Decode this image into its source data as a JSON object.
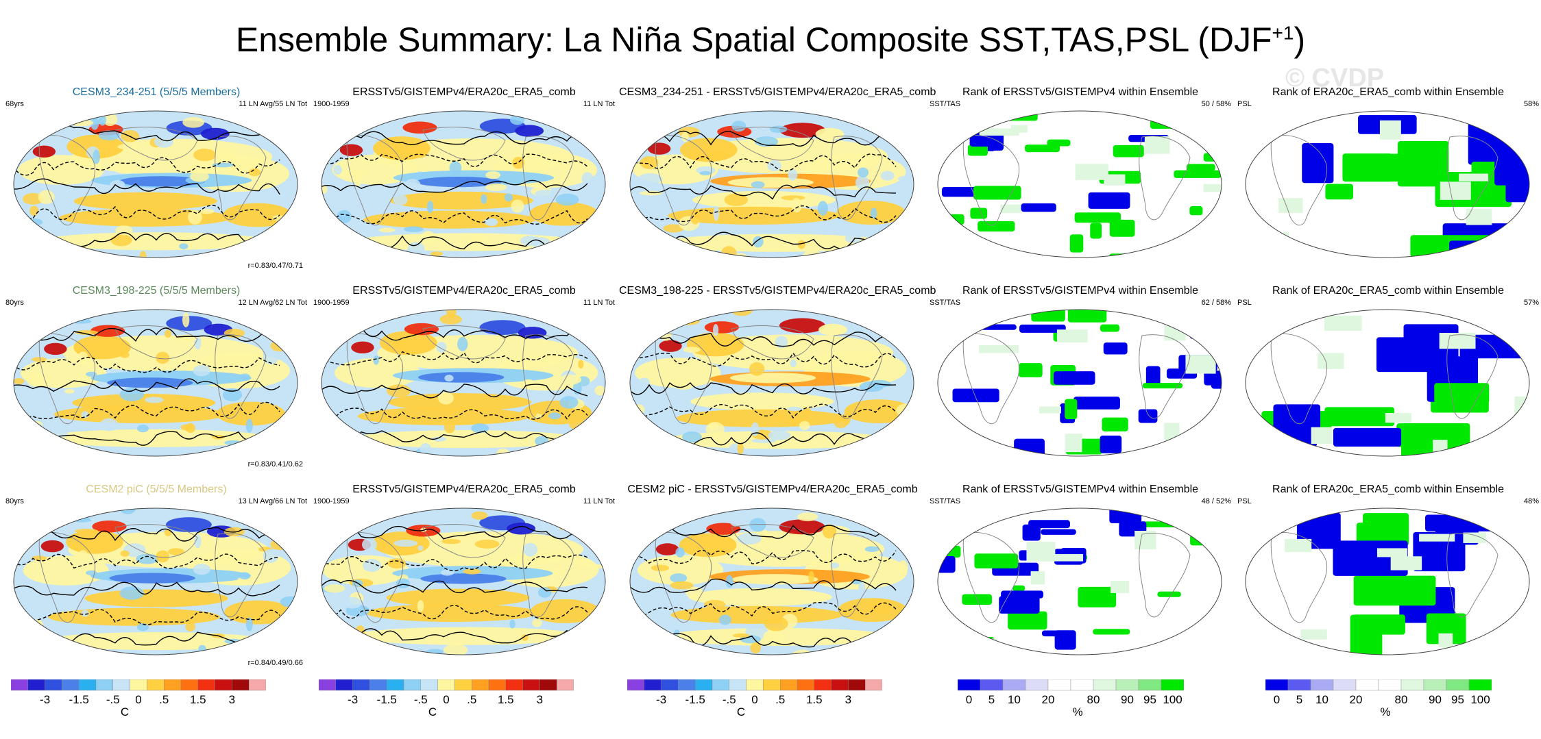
{
  "figure": {
    "title_main": "Ensemble Summary: La Niña Spatial Composite SST,TAS,PSL (DJF",
    "title_sup": "+1",
    "title_end": ")",
    "watermark": "© CVDP"
  },
  "colors": {
    "ensemble_title_rows": [
      "#1a6fa0",
      "#5a8a5a",
      "#d8c880"
    ],
    "anomaly_scale": [
      "#8a3fe0",
      "#2020d0",
      "#3050e0",
      "#4a80e8",
      "#2ab0f0",
      "#8ed0f4",
      "#c6e4f6",
      "#fff6a0",
      "#ffd040",
      "#ffa020",
      "#ff7010",
      "#f03010",
      "#c81010",
      "#a00a0a",
      "#f4a8a8"
    ],
    "rank_scale": [
      "#0000e8",
      "#5a5af0",
      "#aaaaf4",
      "#dcdcf8",
      "#ffffff",
      "#ffffff",
      "#dff7df",
      "#b8f0b8",
      "#80e880",
      "#00e800"
    ],
    "land_outline": "#888888",
    "contour": "#000000"
  },
  "chart_data": [
    {
      "type": "map",
      "row": 1,
      "col": 1,
      "title": "CESM3_234-251 (5/5/5 Members)",
      "left_label": "68yrs",
      "right_label": "11 LN Avg/55 LN Tot",
      "corner_label": "r=0.83/0.47/0.71",
      "variable": "SST/TAS/PSL composite",
      "units": "C"
    },
    {
      "type": "map",
      "row": 1,
      "col": 2,
      "title": "ERSSTv5/GISTEMPv4/ERA20c_ERA5_comb",
      "left_label": "1900-1959",
      "right_label": "11 LN Tot",
      "variable": "SST/TAS/PSL composite",
      "units": "C"
    },
    {
      "type": "map",
      "row": 1,
      "col": 3,
      "title": "CESM3_234-251 - ERSSTv5/GISTEMPv4/ERA20c_ERA5_comb",
      "variable": "difference",
      "units": "C"
    },
    {
      "type": "map",
      "row": 1,
      "col": 4,
      "title": "Rank of ERSSTv5/GISTEMPv4 within Ensemble",
      "left_label": "SST/TAS",
      "right_label": "50 /  58%",
      "units": "%"
    },
    {
      "type": "map",
      "row": 1,
      "col": 5,
      "title": "Rank of ERA20c_ERA5_comb within Ensemble",
      "left_label": "PSL",
      "right_label": "58%",
      "units": "%"
    },
    {
      "type": "map",
      "row": 2,
      "col": 1,
      "title": "CESM3_198-225 (5/5/5 Members)",
      "left_label": "80yrs",
      "right_label": "12 LN Avg/62 LN Tot",
      "corner_label": "r=0.83/0.41/0.62",
      "units": "C"
    },
    {
      "type": "map",
      "row": 2,
      "col": 2,
      "title": "ERSSTv5/GISTEMPv4/ERA20c_ERA5_comb",
      "left_label": "1900-1959",
      "right_label": "11 LN Tot",
      "units": "C"
    },
    {
      "type": "map",
      "row": 2,
      "col": 3,
      "title": "CESM3_198-225 - ERSSTv5/GISTEMPv4/ERA20c_ERA5_comb",
      "units": "C"
    },
    {
      "type": "map",
      "row": 2,
      "col": 4,
      "title": "Rank of ERSSTv5/GISTEMPv4 within Ensemble",
      "left_label": "SST/TAS",
      "right_label": "62 /  58%",
      "units": "%"
    },
    {
      "type": "map",
      "row": 2,
      "col": 5,
      "title": "Rank of ERA20c_ERA5_comb within Ensemble",
      "left_label": "PSL",
      "right_label": "57%",
      "units": "%"
    },
    {
      "type": "map",
      "row": 3,
      "col": 1,
      "title": "CESM2 piC (5/5/5 Members)",
      "left_label": "80yrs",
      "right_label": "13 LN Avg/66 LN Tot",
      "corner_label": "r=0.84/0.49/0.66",
      "units": "C"
    },
    {
      "type": "map",
      "row": 3,
      "col": 2,
      "title": "ERSSTv5/GISTEMPv4/ERA20c_ERA5_comb",
      "left_label": "1900-1959",
      "right_label": "11 LN Tot",
      "units": "C"
    },
    {
      "type": "map",
      "row": 3,
      "col": 3,
      "title": "CESM2 piC - ERSSTv5/GISTEMPv4/ERA20c_ERA5_comb",
      "units": "C"
    },
    {
      "type": "map",
      "row": 3,
      "col": 4,
      "title": "Rank of ERSSTv5/GISTEMPv4 within Ensemble",
      "left_label": "SST/TAS",
      "right_label": "48 /  52%",
      "units": "%"
    },
    {
      "type": "map",
      "row": 3,
      "col": 5,
      "title": "Rank of ERA20c_ERA5_comb within Ensemble",
      "left_label": "PSL",
      "right_label": "48%",
      "units": "%"
    }
  ],
  "colorbars": {
    "anomaly": {
      "ticks": [
        "-3",
        "-1.5",
        "-.5",
        "0",
        ".5",
        "1.5",
        "3"
      ],
      "tick_bin_index": [
        2,
        4,
        6,
        7.5,
        9,
        11,
        13
      ],
      "unit": "C",
      "bins": 15
    },
    "rank": {
      "ticks": [
        "0",
        "5",
        "10",
        "20",
        "80",
        "90",
        "95",
        "100"
      ],
      "tick_bin_index": [
        0.5,
        1.5,
        2.5,
        4,
        6,
        7.5,
        8.5,
        9.5
      ],
      "unit": "%",
      "bins": 10
    }
  }
}
